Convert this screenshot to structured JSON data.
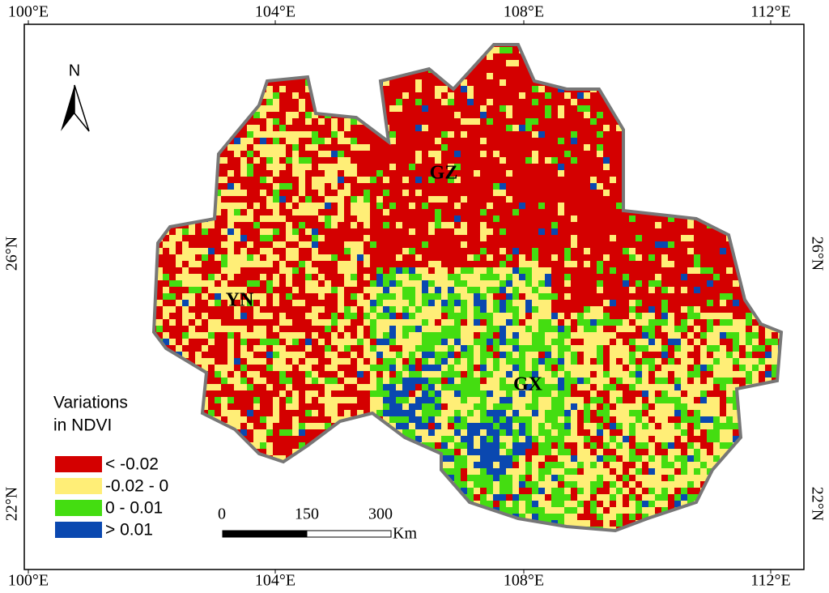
{
  "axes": {
    "top_labels": [
      "100°E",
      "104°E",
      "108°E",
      "112°E"
    ],
    "bottom_labels": [
      "100°E",
      "104°E",
      "108°E",
      "112°E"
    ],
    "left_labels": [
      "26°N",
      "22°N"
    ],
    "right_labels": [
      "26°N",
      "22°N"
    ]
  },
  "north": "N",
  "regions": [
    "GZ",
    "YN",
    "GX"
  ],
  "legend": {
    "title_lines": [
      "Variations",
      "in NDVI"
    ],
    "items": [
      "< -0.02",
      "-0.02 - 0",
      "0 - 0.01",
      "> 0.01"
    ]
  },
  "scale_bar": {
    "labels": [
      "0",
      "150",
      "300"
    ],
    "unit": "Km"
  }
}
